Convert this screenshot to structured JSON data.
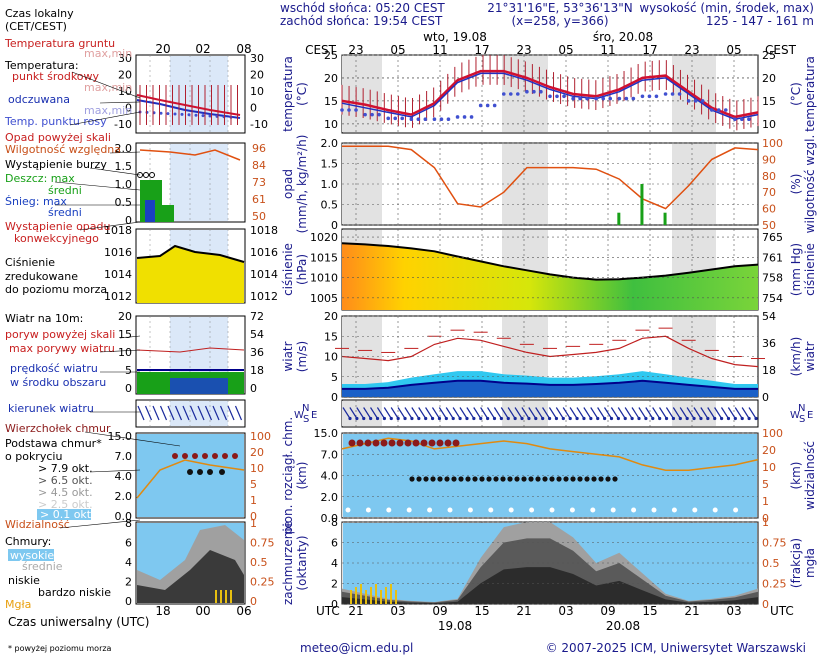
{
  "header": {
    "sunrise": "wschód słońca: 05:20 CEST",
    "sunset": "zachód słońca: 19:54 CEST",
    "coords": "21°31'16\"E, 53°36'13\"N",
    "grid": "(x=258, y=366)",
    "elevation_label": "wysokość (min, środek, max)",
    "elevation_values": "125 - 147 - 161 m",
    "tz_local": "CEST",
    "day1": "wto, 19.08",
    "day2": "śro, 20.08"
  },
  "top_axis_hours": [
    "23",
    "05",
    "11",
    "17",
    "23",
    "05",
    "11",
    "17",
    "23",
    "05"
  ],
  "bottom_axis_hours": [
    "21",
    "03",
    "09",
    "15",
    "21",
    "03",
    "09",
    "15",
    "21",
    "03"
  ],
  "bottom_dates": [
    "19.08",
    "20.08"
  ],
  "utc": "UTC",
  "footer": {
    "contact": "meteo@icm.edu.pl",
    "copyright": "© 2007-2025 ICM, Uniwersytet Warszawski",
    "footnote": "* powyżej poziomu morza",
    "legend_universal_time": "Czas uniwersalny (UTC)"
  },
  "legend": {
    "local_time": "Czas lokalny",
    "local_time_2": "(CET/CEST)",
    "local_hours": [
      "20",
      "02",
      "08"
    ],
    "utc_hours": [
      "18",
      "00",
      "06"
    ],
    "soil_temp": "Temperatura gruntu",
    "soil_minmax": "max,min",
    "temperature": "Temperatura:",
    "temp_mid": "punkt środkowy",
    "temp_maxmin": "max,min",
    "temp_feels": "odczuwana",
    "temp_feels_mm": "max,min",
    "dew_point": "Temp. punktu rosy",
    "rain_above": "Opad powyżej skali",
    "humidity": "Wilgotność względna",
    "storm": "Wystąpienie burzy",
    "rain_max": "Deszcz: max",
    "rain_mean": "średni",
    "snow_max": "Śnieg:  max",
    "snow_mean": "średni",
    "conv": "Wystąpienie opadu",
    "conv2": "konwekcyjnego",
    "pressure": "Ciśnienie",
    "pressure2": "zredukowane",
    "pressure3": "do poziomu morza",
    "wind_head": "Wiatr na 10m:",
    "gust_above": "poryw powyżej skali",
    "gust_max": "max porywy wiatru",
    "wind_speed": "prędkość wiatru",
    "wind_speed2": "w środku obszaru",
    "wind_dir": "kierunek wiatru",
    "cb": "Wierzchołek chmur",
    "cloud_base": "Podstawa chmur*",
    "cloud_base2": "o pokryciu",
    "okt": [
      "> 7.9 okt.",
      "> 6.5 okt.",
      "> 4.5 okt.",
      "> 2.5 okt.",
      "> 0.1 okt."
    ],
    "visibility": "Widzialność",
    "clouds": "Chmury:",
    "high": "wysokie",
    "mid": "średnie",
    "low": "niskie",
    "vlow": "bardzo niskie",
    "fog": "Mgła"
  },
  "panels": {
    "temperature": {
      "label": "temperatura",
      "unit": "(°C)",
      "ticks": [
        "25",
        "20",
        "15",
        "10"
      ],
      "unit_r": "(°C)",
      "label_r": "temperatura"
    },
    "precip": {
      "label": "opad",
      "unit": "(mm/h, kg/m²/h)",
      "ticks": [
        "2.0",
        "1.5",
        "1.0",
        "0.5",
        "0"
      ],
      "ticks_r": [
        "100",
        "90",
        "80",
        "70",
        "60",
        "50"
      ],
      "label_r": "wilgotność wzgl.",
      "unit_r": "(%)"
    },
    "pressure": {
      "label": "ciśnienie",
      "unit": "(hPa)",
      "ticks": [
        "1020",
        "1015",
        "1010",
        "1005"
      ],
      "ticks_r": [
        "765",
        "761",
        "758",
        "754"
      ],
      "unit_r": "(mm Hg)",
      "label_r": "ciśnienie"
    },
    "wind": {
      "label": "wiatr",
      "unit": "(m/s)",
      "ticks": [
        "20",
        "15",
        "10",
        "5",
        "0"
      ],
      "ticks_r": [
        "54",
        "36",
        "18",
        "0"
      ],
      "unit_r": "(km/h)",
      "label_r": "wiatr"
    },
    "clouds_vis": {
      "label": "pion. rozciągł. chm.",
      "unit": "(km)",
      "ticks": [
        "15.0",
        "7.0",
        "4.0",
        "2.0",
        "0.0"
      ],
      "ticks_r": [
        "100",
        "20",
        "10",
        "5",
        "1",
        "0"
      ],
      "unit_r": "(km)",
      "label_r": "widzialność"
    },
    "cover": {
      "label": "zachmurzenie",
      "unit": "(oktanty)",
      "ticks": [
        "8",
        "6",
        "4",
        "2",
        "0"
      ],
      "ticks_r": [
        "1",
        "0.75",
        "0.5",
        "0.25",
        "0"
      ],
      "unit_r": "(frakcja)",
      "label_r": "mgła"
    }
  },
  "chart_data": [
    {
      "type": "line",
      "title": "temperatura",
      "ylabel": "(°C)",
      "ylim": [
        8,
        25
      ],
      "x": [
        "21",
        "00",
        "03",
        "06",
        "09",
        "12",
        "15",
        "18",
        "21",
        "00",
        "03",
        "06",
        "09",
        "12",
        "15",
        "18",
        "21",
        "00",
        "03"
      ],
      "series": [
        {
          "values": [
            15.0,
            14.2,
            13.0,
            12.0,
            14.5,
            19.5,
            21.5,
            21.5,
            20.0,
            18.0,
            16.5,
            16.0,
            17.5,
            20.0,
            20.5,
            17.0,
            13.5,
            11.5,
            12.5
          ]
        },
        {
          "values": [
            14.5,
            13.5,
            12.5,
            11.5,
            14.0,
            19.0,
            21.0,
            21.0,
            19.5,
            17.5,
            16.0,
            15.5,
            17.0,
            19.5,
            20.0,
            16.5,
            13.0,
            11.0,
            12.0
          ]
        },
        {
          "values": [
            13.0,
            12.0,
            11.2,
            11.0,
            11.0,
            11.5,
            14.0,
            16.5,
            17.0,
            16.0,
            15.5,
            15.5,
            15.5,
            16.0,
            16.5,
            15.0,
            13.0,
            11.0,
            10.5
          ]
        }
      ]
    },
    {
      "type": "line",
      "title": "wilgotność wzgl.",
      "ylabel": "(%)",
      "ylim": [
        50,
        100
      ],
      "x": [
        "21",
        "00",
        "03",
        "06",
        "09",
        "12",
        "15",
        "18",
        "21",
        "00",
        "03",
        "06",
        "09",
        "12",
        "15",
        "18",
        "21",
        "00",
        "03"
      ],
      "series": [
        {
          "values": [
            98,
            98,
            98,
            96,
            85,
            63,
            61,
            70,
            85,
            85,
            85,
            84,
            78,
            66,
            60,
            74,
            90,
            97,
            96
          ]
        }
      ],
      "precip_max": [
        0,
        0,
        0,
        0,
        0,
        0,
        0,
        0,
        0,
        0,
        0,
        0,
        0.3,
        1.0,
        0.3,
        0,
        0,
        0,
        0
      ]
    },
    {
      "type": "area",
      "title": "ciśnienie",
      "ylabel": "(hPa)",
      "ylim": [
        1002,
        1022
      ],
      "x": [
        "21",
        "00",
        "03",
        "06",
        "09",
        "12",
        "15",
        "18",
        "21",
        "00",
        "03",
        "06",
        "09",
        "12",
        "15",
        "18",
        "21",
        "00",
        "03"
      ],
      "series": [
        {
          "values": [
            1018.5,
            1018.2,
            1017.8,
            1017.2,
            1016.5,
            1015.2,
            1014.0,
            1012.8,
            1011.8,
            1010.8,
            1010.0,
            1009.5,
            1009.6,
            1010.0,
            1010.5,
            1011.2,
            1012.0,
            1012.8,
            1013.2
          ]
        }
      ]
    },
    {
      "type": "area",
      "title": "wiatr",
      "ylabel": "(m/s)",
      "ylim": [
        0,
        20
      ],
      "x": [
        "21",
        "00",
        "03",
        "06",
        "09",
        "12",
        "15",
        "18",
        "21",
        "00",
        "03",
        "06",
        "09",
        "12",
        "15",
        "18",
        "21",
        "00",
        "03"
      ],
      "series": [
        {
          "values": [
            2.0,
            2.0,
            2.3,
            3.0,
            3.5,
            4.0,
            4.0,
            3.5,
            3.3,
            3.0,
            3.0,
            3.2,
            3.5,
            4.0,
            3.5,
            3.0,
            2.5,
            2.0,
            2.0
          ]
        },
        {
          "values": [
            10.0,
            9.5,
            9.0,
            10.0,
            13.0,
            14.5,
            14.0,
            12.5,
            11.0,
            10.0,
            10.5,
            11.0,
            12.0,
            14.5,
            15.0,
            12.0,
            9.5,
            8.0,
            7.5
          ]
        }
      ]
    },
    {
      "type": "area",
      "title": "zachmurzenie",
      "ylabel": "(oktanty)",
      "ylim": [
        0,
        8
      ],
      "x": [
        "21",
        "00",
        "03",
        "06",
        "09",
        "12",
        "15",
        "18",
        "21",
        "00",
        "03",
        "06",
        "09",
        "12",
        "15",
        "18",
        "21",
        "00",
        "03"
      ],
      "series": [
        {
          "values": [
            1.5,
            1.0,
            0.5,
            0.3,
            0.2,
            0.5,
            4.5,
            7.5,
            8.0,
            8.0,
            6.5,
            4.0,
            5.0,
            3.0,
            1.0,
            0.3,
            0.5,
            0.8,
            1.5
          ]
        }
      ]
    }
  ]
}
